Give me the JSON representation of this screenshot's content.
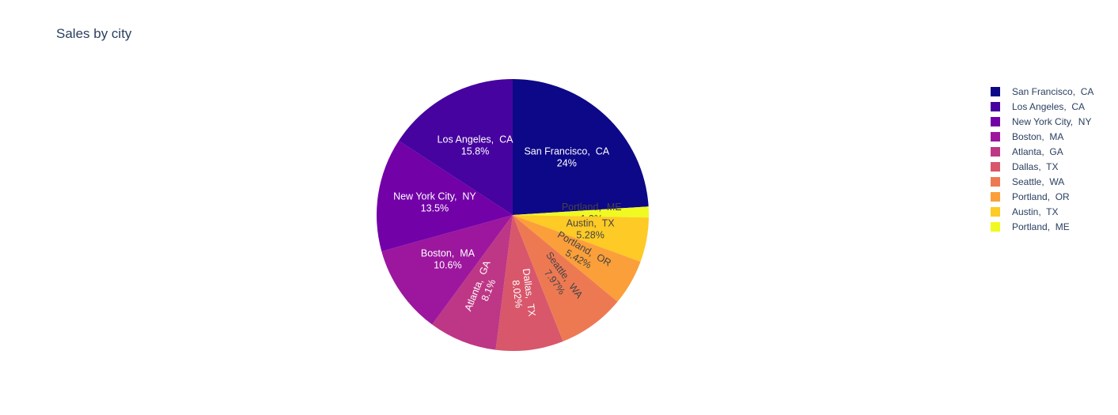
{
  "chart_data": {
    "type": "pie",
    "title": "Sales by city",
    "direction": "clockwise",
    "start": "12 o'clock",
    "labels": [
      "San Francisco,  CA",
      "Los Angeles,  CA",
      "New York City,  NY",
      "Boston,  MA",
      "Atlanta,  GA",
      "Dallas,  TX",
      "Seattle,  WA",
      "Portland,  OR",
      "Austin,  TX",
      "Portland,  ME"
    ],
    "percent_labels": [
      "24%",
      "15.8%",
      "13.5%",
      "10.6%",
      "8.1%",
      "8.02%",
      "7.97%",
      "5.42%",
      "5.28%",
      "1.3%"
    ],
    "values": [
      24.0,
      15.8,
      13.5,
      10.6,
      8.1,
      8.02,
      7.97,
      5.42,
      5.28,
      1.3
    ],
    "colors": [
      "#0d0887",
      "#46039f",
      "#7201a8",
      "#9c179e",
      "#bd3786",
      "#d8576b",
      "#ed7953",
      "#fb9f3a",
      "#fdca26",
      "#f0f921"
    ],
    "text_colors": [
      "#ffffff",
      "#ffffff",
      "#ffffff",
      "#ffffff",
      "#ffffff",
      "#ffffff",
      "#444444",
      "#444444",
      "#444444",
      "#444444"
    ],
    "slice_order_clockwise": [
      0,
      9,
      8,
      7,
      6,
      5,
      4,
      3,
      2,
      1
    ],
    "legend_placement": "right"
  }
}
